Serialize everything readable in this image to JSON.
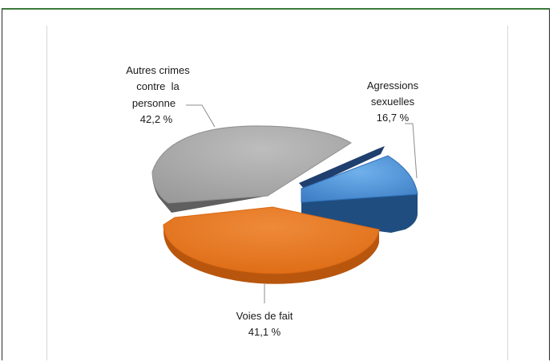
{
  "chart_data": {
    "type": "pie",
    "title": "",
    "slices": [
      {
        "name_lines": [
          "Agressions",
          "sexuelles"
        ],
        "value_label": "16,7 %",
        "value": 16.7,
        "color": "#4a90d9",
        "side_color": "#1f4d80",
        "exploded": true
      },
      {
        "name_lines": [
          "Voies de fait"
        ],
        "value_label": "41,1 %",
        "value": 41.1,
        "color": "#e87722",
        "side_color": "#b8560e",
        "exploded": false
      },
      {
        "name_lines": [
          "Autres crimes",
          "contre  la",
          "personne"
        ],
        "value_label": "42,2 %",
        "value": 42.2,
        "color": "#a6a6a6",
        "side_color": "#5e5e5e",
        "exploded": false
      }
    ]
  }
}
